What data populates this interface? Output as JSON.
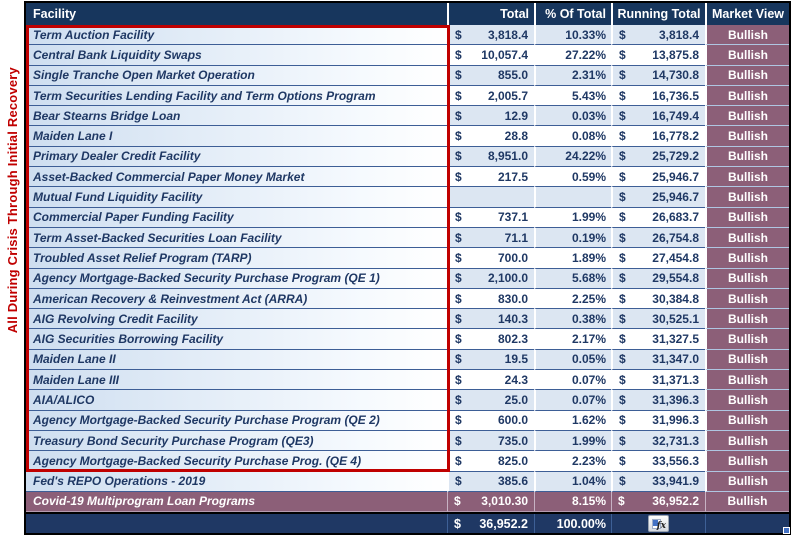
{
  "side_label": "All During Crisis Through Initial Recovery",
  "header": {
    "facility": "Facility",
    "total": "Total",
    "pct_of_total": "% Of Total",
    "running_total": "Running Total",
    "market_view": "Market View"
  },
  "currency_symbol": "$",
  "rows": [
    {
      "facility": "Term Auction Facility",
      "total": "3,818.4",
      "pct": "10.33%",
      "running": "3,818.4",
      "view": "Bullish",
      "band": "blue",
      "in_red_box": true
    },
    {
      "facility": "Central Bank Liquidity Swaps",
      "total": "10,057.4",
      "pct": "27.22%",
      "running": "13,875.8",
      "view": "Bullish",
      "band": "white",
      "in_red_box": true
    },
    {
      "facility": "Single Tranche Open Market Operation",
      "total": "855.0",
      "pct": "2.31%",
      "running": "14,730.8",
      "view": "Bullish",
      "band": "blue",
      "in_red_box": true
    },
    {
      "facility": "Term Securities Lending Facility and Term Options Program",
      "total": "2,005.7",
      "pct": "5.43%",
      "running": "16,736.5",
      "view": "Bullish",
      "band": "white",
      "in_red_box": true
    },
    {
      "facility": "Bear Stearns Bridge Loan",
      "total": "12.9",
      "pct": "0.03%",
      "running": "16,749.4",
      "view": "Bullish",
      "band": "blue",
      "in_red_box": true
    },
    {
      "facility": "Maiden Lane I",
      "total": "28.8",
      "pct": "0.08%",
      "running": "16,778.2",
      "view": "Bullish",
      "band": "white",
      "in_red_box": true
    },
    {
      "facility": "Primary Dealer Credit Facility",
      "total": "8,951.0",
      "pct": "24.22%",
      "running": "25,729.2",
      "view": "Bullish",
      "band": "blue",
      "in_red_box": true
    },
    {
      "facility": "Asset-Backed Commercial Paper Money Market",
      "total": "217.5",
      "pct": "0.59%",
      "running": "25,946.7",
      "view": "Bullish",
      "band": "white",
      "in_red_box": true
    },
    {
      "facility": "Mutual Fund Liquidity Facility",
      "total": "",
      "pct": "",
      "running": "25,946.7",
      "view": "Bullish",
      "band": "blue",
      "in_red_box": true
    },
    {
      "facility": "Commercial Paper Funding Facility",
      "total": "737.1",
      "pct": "1.99%",
      "running": "26,683.7",
      "view": "Bullish",
      "band": "white",
      "in_red_box": true
    },
    {
      "facility": "Term Asset-Backed Securities Loan Facility",
      "total": "71.1",
      "pct": "0.19%",
      "running": "26,754.8",
      "view": "Bullish",
      "band": "blue",
      "in_red_box": true
    },
    {
      "facility": "Troubled Asset Relief Program (TARP)",
      "total": "700.0",
      "pct": "1.89%",
      "running": "27,454.8",
      "view": "Bullish",
      "band": "white",
      "in_red_box": true
    },
    {
      "facility": "Agency Mortgage-Backed Security Purchase Program (QE 1)",
      "total": "2,100.0",
      "pct": "5.68%",
      "running": "29,554.8",
      "view": "Bullish",
      "band": "blue",
      "in_red_box": true
    },
    {
      "facility": "American Recovery & Reinvestment Act (ARRA)",
      "total": "830.0",
      "pct": "2.25%",
      "running": "30,384.8",
      "view": "Bullish",
      "band": "white",
      "in_red_box": true
    },
    {
      "facility": "AIG Revolving Credit Facility",
      "total": "140.3",
      "pct": "0.38%",
      "running": "30,525.1",
      "view": "Bullish",
      "band": "blue",
      "in_red_box": true
    },
    {
      "facility": "AIG Securities Borrowing Facility",
      "total": "802.3",
      "pct": "2.17%",
      "running": "31,327.5",
      "view": "Bullish",
      "band": "white",
      "in_red_box": true
    },
    {
      "facility": "Maiden Lane II",
      "total": "19.5",
      "pct": "0.05%",
      "running": "31,347.0",
      "view": "Bullish",
      "band": "blue",
      "in_red_box": true
    },
    {
      "facility": "Maiden Lane III",
      "total": "24.3",
      "pct": "0.07%",
      "running": "31,371.3",
      "view": "Bullish",
      "band": "white",
      "in_red_box": true
    },
    {
      "facility": "AIA/ALICO",
      "total": "25.0",
      "pct": "0.07%",
      "running": "31,396.3",
      "view": "Bullish",
      "band": "blue",
      "in_red_box": true
    },
    {
      "facility": "Agency Mortgage-Backed Security Purchase Program (QE 2)",
      "total": "600.0",
      "pct": "1.62%",
      "running": "31,996.3",
      "view": "Bullish",
      "band": "white",
      "in_red_box": true
    },
    {
      "facility": "Treasury Bond Security Purchase Program (QE3)",
      "total": "735.0",
      "pct": "1.99%",
      "running": "32,731.3",
      "view": "Bullish",
      "band": "blue",
      "in_red_box": true
    },
    {
      "facility": "Agency Mortgage-Backed Security Purchase Prog. (QE 4)",
      "total": "825.0",
      "pct": "2.23%",
      "running": "33,556.3",
      "view": "Bullish",
      "band": "white",
      "in_red_box": true
    },
    {
      "facility": "Fed's REPO Operations - 2019",
      "total": "385.6",
      "pct": "1.04%",
      "running": "33,941.9",
      "view": "Bullish",
      "band": "blue",
      "in_red_box": false
    },
    {
      "facility": "Covid-19 Multiprogram Loan Programs",
      "total": "3,010.30",
      "pct": "8.15%",
      "running": "36,952.2",
      "view": "Bullish",
      "band": "mauve",
      "in_red_box": false
    }
  ],
  "total_row": {
    "currency": "$",
    "total": "36,952.2",
    "pct": "100.00%",
    "fx_icon_label": "fx"
  },
  "colors": {
    "header_bg": "#17365D",
    "band_blue": "#DCE6F2",
    "row_text": "#1F3864",
    "mauve": "#8C5F78",
    "red_accent": "#C00000",
    "total_row_bg": "#1F3864",
    "grid_line": "#3D5E96",
    "market_grid_line": "#AFC6E2",
    "fill_handle": "#4472C4"
  }
}
